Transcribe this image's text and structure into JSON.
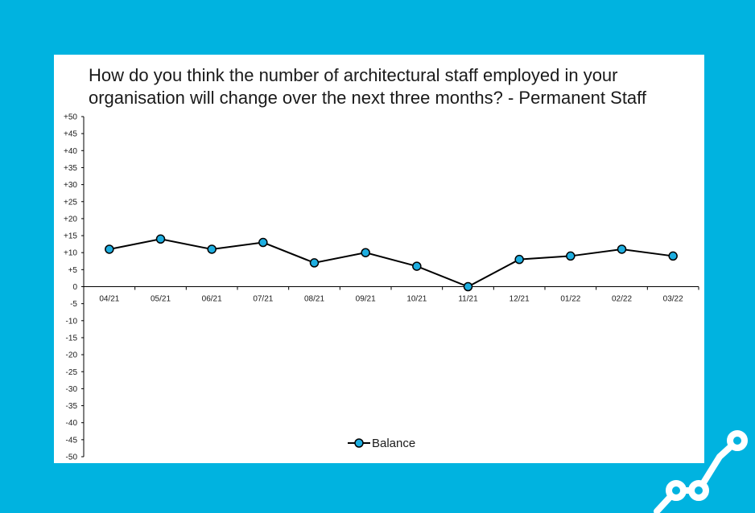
{
  "chart_data": {
    "type": "line",
    "title": "How do you think the number of architectural staff employed in your organisation will change over the next three months? - Permanent Staff",
    "categories": [
      "04/21",
      "05/21",
      "06/21",
      "07/21",
      "08/21",
      "09/21",
      "10/21",
      "11/21",
      "12/21",
      "01/22",
      "02/22",
      "03/22"
    ],
    "series": [
      {
        "name": "Balance",
        "values": [
          11,
          14,
          11,
          13,
          7,
          10,
          6,
          0,
          8,
          9,
          11,
          9
        ]
      }
    ],
    "ylim": [
      -50,
      50
    ],
    "ytick_step": 5,
    "ytick_labels": [
      "+50",
      "+45",
      "+40",
      "+35",
      "+30",
      "+25",
      "+20",
      "+15",
      "+10",
      "+5",
      "0",
      "-5",
      "-10",
      "-15",
      "-20",
      "-25",
      "-30",
      "-35",
      "-40",
      "-45",
      "-50"
    ],
    "legend_position": "bottom-center",
    "grid": false,
    "colors": {
      "background": "#00b3e0",
      "marker_fill": "#1eaee0",
      "line": "#000000"
    }
  },
  "logo": {
    "icon": "line-chart-logo-icon"
  }
}
